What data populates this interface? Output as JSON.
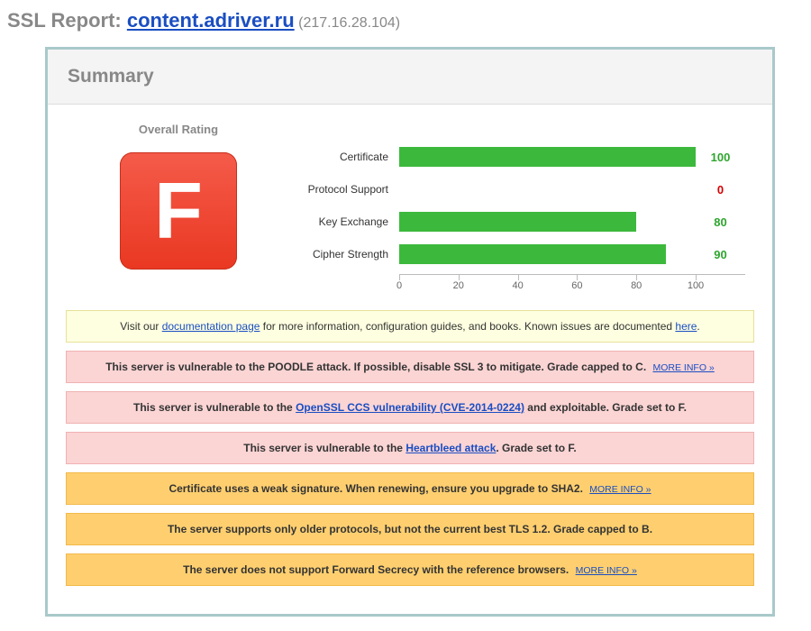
{
  "header": {
    "prefix": "SSL Report: ",
    "hostname": "content.adriver.ru",
    "ip": " (217.16.28.104)"
  },
  "panel": {
    "title": "Summary"
  },
  "rating": {
    "title": "Overall Rating",
    "grade": "F",
    "grade_bg": "linear-gradient(to bottom, #f55b4a, #e93822)",
    "grade_border": "#c92f1b",
    "grade_color": "#ffffff"
  },
  "chart": {
    "bar_color": "#3cb93c",
    "axis": {
      "min": 0,
      "max": 100,
      "ticks": [
        0,
        20,
        40,
        60,
        80,
        100
      ]
    },
    "series": [
      {
        "label": "Certificate",
        "value": 100,
        "value_color": "#2fa52f"
      },
      {
        "label": "Protocol Support",
        "value": 0,
        "value_color": "#d40000"
      },
      {
        "label": "Key Exchange",
        "value": 80,
        "value_color": "#2fa52f"
      },
      {
        "label": "Cipher Strength",
        "value": 90,
        "value_color": "#2fa52f"
      }
    ]
  },
  "message_styles": {
    "info": {
      "bg": "#feffe0",
      "border": "#e6e29a"
    },
    "danger": {
      "bg": "#fbd4d4",
      "border": "#f0b2b2"
    },
    "warn": {
      "bg": "#ffcf6f",
      "border": "#f2b94a"
    }
  },
  "messages": [
    {
      "style": "info",
      "parts": [
        {
          "t": "Visit our "
        },
        {
          "t": "documentation page",
          "link": true
        },
        {
          "t": " for more information, configuration guides, and books. Known issues are documented "
        },
        {
          "t": "here",
          "link": true
        },
        {
          "t": "."
        }
      ]
    },
    {
      "style": "danger",
      "parts": [
        {
          "t": "This server is vulnerable to the POODLE attack. If possible, disable SSL 3 to mitigate. Grade capped to C.  ",
          "bold": true
        },
        {
          "t": "MORE INFO »",
          "more": true
        }
      ]
    },
    {
      "style": "danger",
      "parts": [
        {
          "t": "This server is vulnerable to the ",
          "bold": true
        },
        {
          "t": "OpenSSL CCS vulnerability (CVE-2014-0224)",
          "link": true,
          "bold": true
        },
        {
          "t": " and exploitable. Grade set to F.",
          "bold": true
        }
      ]
    },
    {
      "style": "danger",
      "parts": [
        {
          "t": "This server is vulnerable to the ",
          "bold": true
        },
        {
          "t": "Heartbleed attack",
          "link": true,
          "bold": true
        },
        {
          "t": ". Grade set to F.",
          "bold": true
        }
      ]
    },
    {
      "style": "warn",
      "parts": [
        {
          "t": "Certificate uses a weak signature. When renewing, ensure you upgrade to SHA2. ",
          "bold": true
        },
        {
          "t": "MORE INFO »",
          "more": true
        }
      ]
    },
    {
      "style": "warn",
      "parts": [
        {
          "t": "The server supports only older protocols, but not the current best TLS 1.2. Grade capped to B.",
          "bold": true
        }
      ]
    },
    {
      "style": "warn",
      "parts": [
        {
          "t": "The server does not support Forward Secrecy with the reference browsers. ",
          "bold": true
        },
        {
          "t": "MORE INFO »",
          "more": true
        }
      ]
    }
  ]
}
